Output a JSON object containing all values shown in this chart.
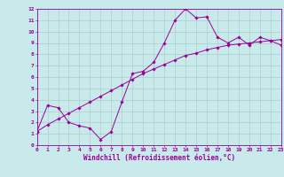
{
  "xlabel": "Windchill (Refroidissement éolien,°C)",
  "bg_color": "#c8eaea",
  "line_color": "#990099",
  "grid_color": "#aacccc",
  "curve1_x": [
    0,
    1,
    2,
    3,
    4,
    5,
    6,
    7,
    8,
    9,
    10,
    11,
    12,
    13,
    14,
    15,
    16,
    17,
    18,
    19,
    20,
    21,
    22,
    23
  ],
  "curve1_y": [
    1.2,
    3.5,
    3.3,
    2.0,
    1.7,
    1.5,
    0.5,
    1.2,
    3.8,
    6.3,
    6.5,
    7.3,
    9.0,
    11.0,
    12.0,
    11.2,
    11.3,
    9.5,
    9.0,
    9.5,
    8.8,
    9.5,
    9.2,
    8.8
  ],
  "curve2_x": [
    0,
    1,
    2,
    3,
    4,
    5,
    6,
    7,
    8,
    9,
    10,
    11,
    12,
    13,
    14,
    15,
    16,
    17,
    18,
    19,
    20,
    21,
    22,
    23
  ],
  "curve2_y": [
    1.2,
    1.8,
    2.3,
    2.8,
    3.3,
    3.8,
    4.3,
    4.8,
    5.3,
    5.8,
    6.3,
    6.7,
    7.1,
    7.5,
    7.9,
    8.1,
    8.4,
    8.6,
    8.8,
    8.9,
    9.0,
    9.1,
    9.2,
    9.3
  ],
  "xlim": [
    0,
    23
  ],
  "ylim": [
    0,
    12
  ],
  "xticks": [
    0,
    1,
    2,
    3,
    4,
    5,
    6,
    7,
    8,
    9,
    10,
    11,
    12,
    13,
    14,
    15,
    16,
    17,
    18,
    19,
    20,
    21,
    22,
    23
  ],
  "yticks": [
    0,
    1,
    2,
    3,
    4,
    5,
    6,
    7,
    8,
    9,
    10,
    11,
    12
  ],
  "tick_fontsize": 4.5,
  "xlabel_fontsize": 5.5,
  "marker": "D",
  "markersize": 1.8,
  "linewidth": 0.7
}
